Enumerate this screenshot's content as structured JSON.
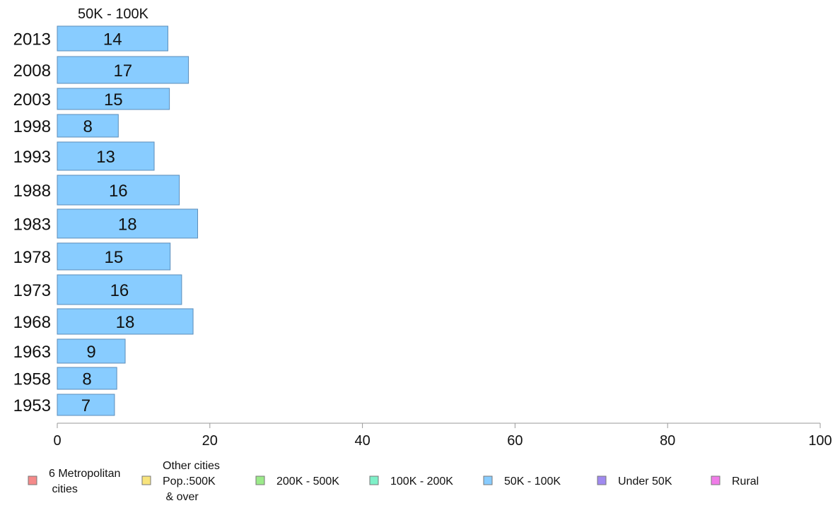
{
  "chart_data": {
    "type": "bar",
    "orientation": "horizontal",
    "title": "50K - 100K",
    "categories": [
      "2013",
      "2008",
      "2003",
      "1998",
      "1993",
      "1988",
      "1983",
      "1978",
      "1973",
      "1968",
      "1963",
      "1958",
      "1953"
    ],
    "values": [
      14.5,
      17.2,
      14.7,
      8.0,
      12.7,
      16.0,
      18.4,
      14.8,
      16.3,
      17.8,
      8.9,
      7.8,
      7.5
    ],
    "value_labels": [
      "14",
      "17",
      "15",
      "8",
      "13",
      "16",
      "18",
      "15",
      "16",
      "18",
      "9",
      "8",
      "7"
    ],
    "xlim": [
      0,
      100
    ],
    "xticks": [
      "0",
      "20",
      "40",
      "60",
      "80",
      "100"
    ],
    "grid": false,
    "bar_color": "#88CCFF",
    "bar_edge_color": "#5B8DBA",
    "legend": {
      "placement": "bottom",
      "entries": [
        {
          "lines": [
            "6 Metropolitan",
            " cities"
          ],
          "color": "#F58A8A"
        },
        {
          "lines": [
            "Other cities",
            "Pop.:500K",
            " & over"
          ],
          "color": "#F8E47C"
        },
        {
          "lines": [
            "200K - 500K"
          ],
          "color": "#9BEA8A"
        },
        {
          "lines": [
            "100K - 200K"
          ],
          "color": "#7FF0C8"
        },
        {
          "lines": [
            "50K - 100K"
          ],
          "color": "#88CCFF"
        },
        {
          "lines": [
            "Under 50K"
          ],
          "color": "#A08AF0"
        },
        {
          "lines": [
            "Rural"
          ],
          "color": "#F07CE8"
        }
      ]
    }
  }
}
